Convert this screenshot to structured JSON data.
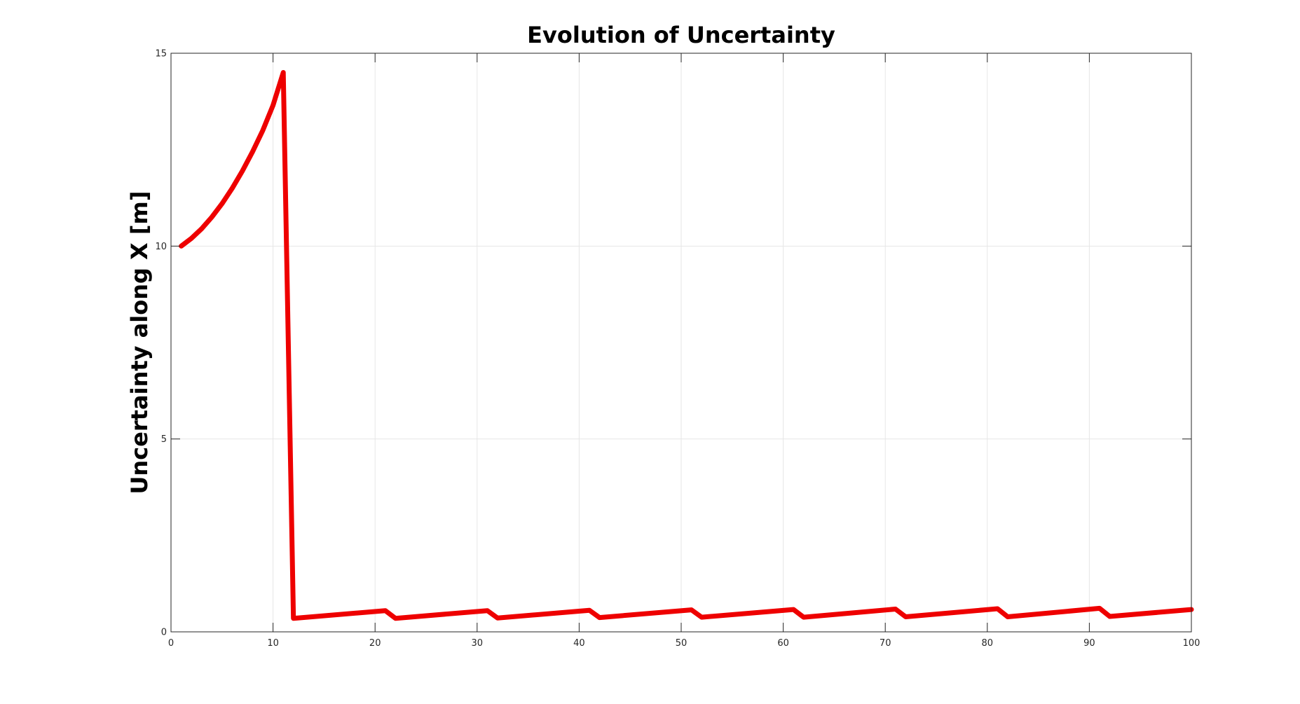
{
  "chart_data": {
    "type": "line",
    "title": "Evolution of Uncertainty",
    "xlabel": "",
    "ylabel": "Uncertainty along X [m]",
    "xlim": [
      0,
      100
    ],
    "ylim": [
      0,
      15
    ],
    "xticks": [
      0,
      10,
      20,
      30,
      40,
      50,
      60,
      70,
      80,
      90,
      100
    ],
    "yticks": [
      0,
      5,
      10,
      15
    ],
    "grid": true,
    "series": [
      {
        "name": "",
        "color": "#ee0000",
        "x": [
          1,
          2,
          3,
          4,
          5,
          6,
          7,
          8,
          9,
          10,
          11,
          12,
          21,
          22,
          31,
          32,
          41,
          42,
          51,
          52,
          61,
          62,
          71,
          72,
          81,
          82,
          91,
          92,
          100
        ],
        "y": [
          10.0,
          10.2,
          10.45,
          10.75,
          11.1,
          11.5,
          11.95,
          12.45,
          13.0,
          13.65,
          14.5,
          0.35,
          0.55,
          0.35,
          0.55,
          0.36,
          0.56,
          0.37,
          0.57,
          0.38,
          0.58,
          0.38,
          0.59,
          0.39,
          0.6,
          0.39,
          0.61,
          0.4,
          0.58
        ]
      }
    ]
  }
}
